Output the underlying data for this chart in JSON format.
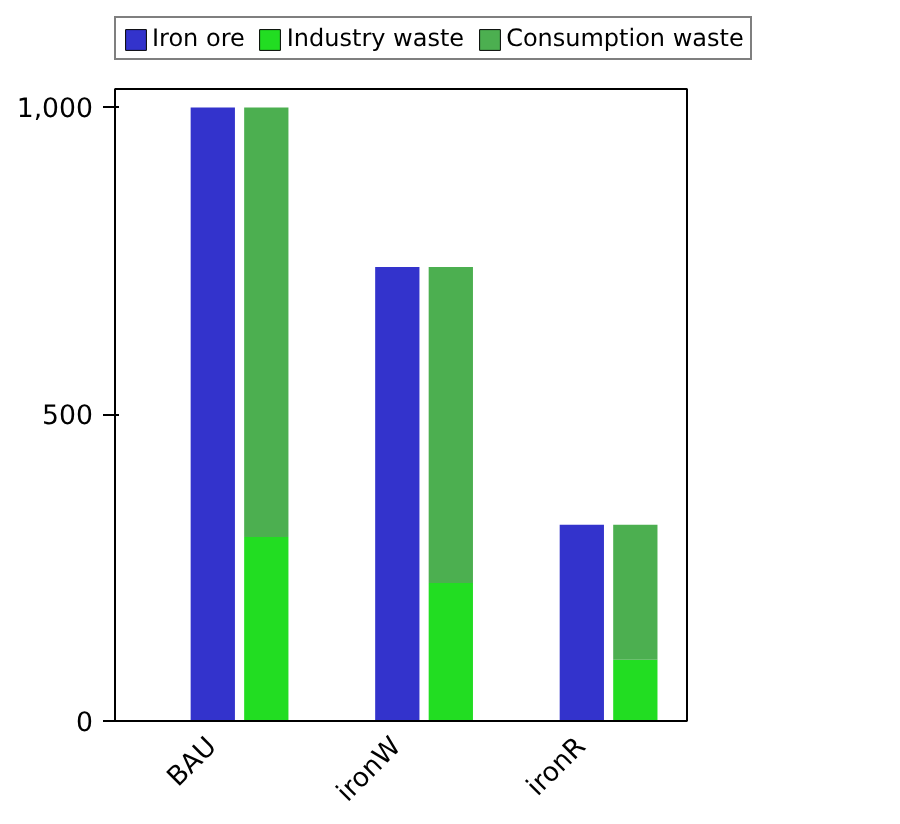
{
  "chart_data": {
    "type": "bar",
    "stacked": true,
    "categories": [
      "BAU",
      null,
      "ironW",
      null,
      "ironR",
      null
    ],
    "series": [
      {
        "name": "Iron ore",
        "color": "#3333cc",
        "values": [
          1000,
          null,
          740,
          null,
          320,
          null
        ]
      },
      {
        "name": "Industry waste",
        "color": "#22dd22",
        "values": [
          null,
          300,
          null,
          225,
          null,
          100
        ]
      },
      {
        "name": "Consumption waste",
        "color": "#4caf50",
        "values": [
          null,
          700,
          null,
          515,
          null,
          220
        ]
      }
    ],
    "ylim": [
      0,
      1030
    ],
    "yticks": [
      0,
      500,
      {
        "value": 1000,
        "label": "1,000"
      }
    ],
    "grid": false,
    "legend": "top"
  }
}
